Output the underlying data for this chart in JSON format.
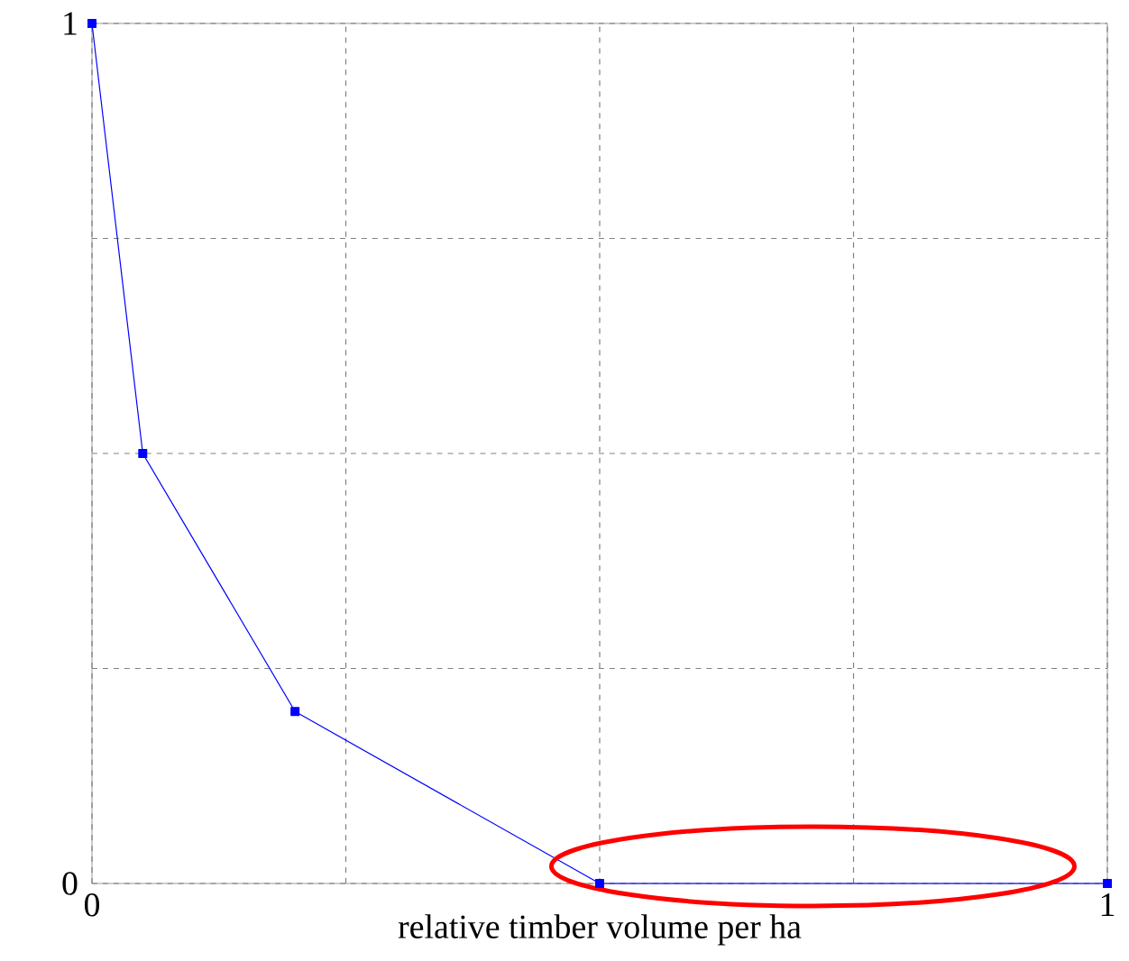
{
  "chart_data": {
    "type": "line",
    "xlabel": "relative timber volume per ha",
    "x": [
      0,
      0.05,
      0.2,
      0.5,
      1
    ],
    "series": [
      {
        "color": "#0000ff",
        "values": [
          1,
          0.5,
          0.2,
          0,
          0
        ]
      }
    ],
    "xlim": [
      0,
      1
    ],
    "ylim": [
      0,
      1
    ],
    "xticks": [
      0,
      {
        "value": 0.25,
        "label": null
      },
      {
        "value": 0.5,
        "label": null
      },
      {
        "value": 0.75,
        "label": null
      },
      1
    ],
    "yticks": [
      0,
      {
        "value": 0.25,
        "label": null
      },
      {
        "value": 0.5,
        "label": null
      },
      {
        "value": 0.75,
        "label": null
      },
      1
    ],
    "grid": true,
    "marker": "square",
    "line_style": "solid"
  }
}
